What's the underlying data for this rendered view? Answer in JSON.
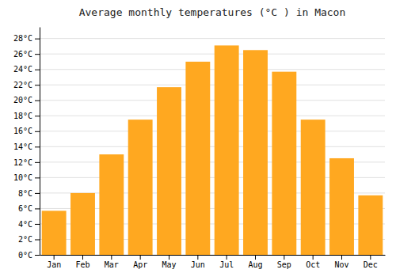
{
  "chart_data": {
    "type": "bar",
    "title": "Average monthly temperatures (°C ) in Macon",
    "categories": [
      "Jan",
      "Feb",
      "Mar",
      "Apr",
      "May",
      "Jun",
      "Jul",
      "Aug",
      "Sep",
      "Oct",
      "Nov",
      "Dec"
    ],
    "values": [
      5.7,
      8.0,
      13.0,
      17.5,
      21.7,
      25.0,
      27.1,
      26.5,
      23.7,
      17.5,
      12.5,
      7.7
    ],
    "color": "#FFA820",
    "ylim": [
      0,
      29.5
    ],
    "yticks": [
      {
        "value": 0,
        "label": "0°C"
      },
      {
        "value": 2,
        "label": "2°C"
      },
      {
        "value": 4,
        "label": "4°C"
      },
      {
        "value": 6,
        "label": "6°C"
      },
      {
        "value": 8,
        "label": "8°C"
      },
      {
        "value": 10,
        "label": "10°C"
      },
      {
        "value": 12,
        "label": "12°C"
      },
      {
        "value": 14,
        "label": "14°C"
      },
      {
        "value": 16,
        "label": "16°C"
      },
      {
        "value": 18,
        "label": "18°C"
      },
      {
        "value": 20,
        "label": "20°C"
      },
      {
        "value": 22,
        "label": "22°C"
      },
      {
        "value": 24,
        "label": "24°C"
      },
      {
        "value": 26,
        "label": "26°C"
      },
      {
        "value": 28,
        "label": "28°C"
      }
    ],
    "grid": true
  }
}
